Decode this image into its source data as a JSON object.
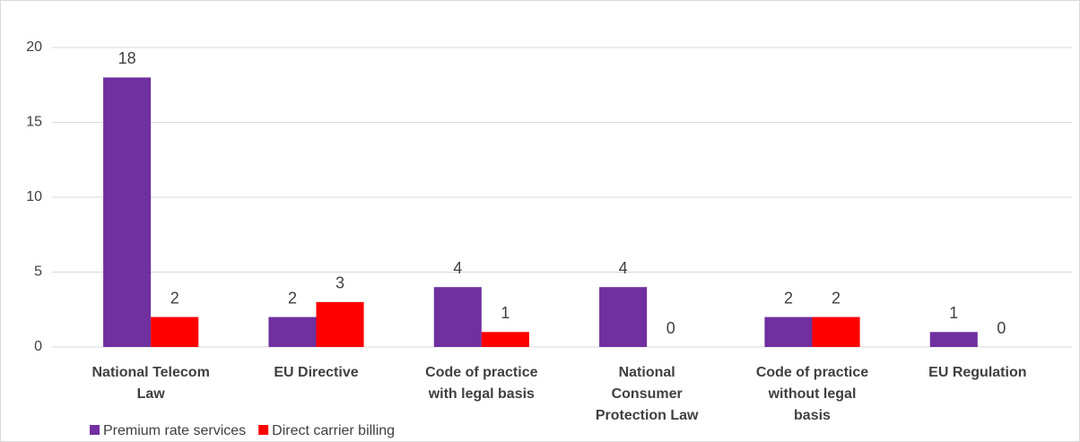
{
  "chart_data": {
    "type": "bar",
    "categories": [
      "National Telecom Law",
      "EU Directive",
      "Code of practice with legal basis",
      "National Consumer Protection Law",
      "Code of practice without legal basis",
      "EU Regulation"
    ],
    "series": [
      {
        "name": "Premium rate services",
        "color": "#7030a0",
        "values": [
          18,
          2,
          4,
          4,
          2,
          1
        ]
      },
      {
        "name": "Direct carrier billing",
        "color": "#ff0000",
        "values": [
          2,
          3,
          1,
          0,
          2,
          0
        ]
      }
    ],
    "ylim": [
      0,
      20
    ],
    "yticks": [
      0,
      5,
      10,
      15,
      20
    ],
    "grid": true,
    "legend": "bottom"
  }
}
